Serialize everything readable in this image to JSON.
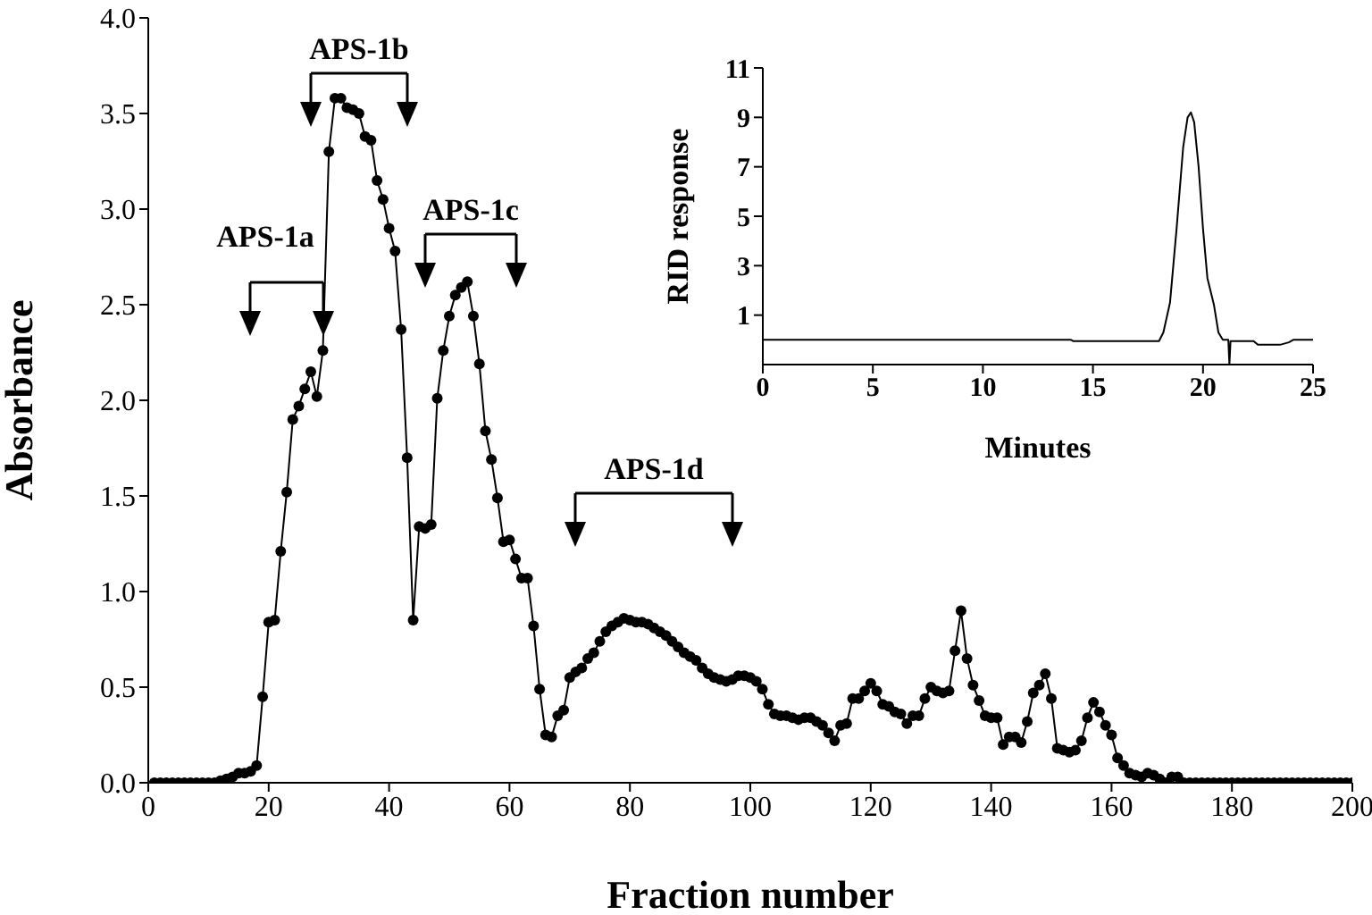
{
  "chart_data": [
    {
      "type": "line",
      "xlabel": "Fraction number",
      "ylabel": "Absorbance",
      "color": "#000000",
      "marker": "circle",
      "line_style": "solid",
      "x": [
        1,
        2,
        3,
        4,
        5,
        6,
        7,
        8,
        9,
        10,
        11,
        12,
        13,
        14,
        15,
        16,
        17,
        18,
        19,
        20,
        21,
        22,
        23,
        24,
        25,
        26,
        27,
        28,
        29,
        30,
        31,
        32,
        33,
        34,
        35,
        36,
        37,
        38,
        39,
        40,
        41,
        42,
        43,
        44,
        45,
        46,
        47,
        48,
        49,
        50,
        51,
        52,
        53,
        54,
        55,
        56,
        57,
        58,
        59,
        60,
        61,
        62,
        63,
        64,
        65,
        66,
        67,
        68,
        69,
        70,
        71,
        72,
        73,
        74,
        75,
        76,
        77,
        78,
        79,
        80,
        81,
        82,
        83,
        84,
        85,
        86,
        87,
        88,
        89,
        90,
        91,
        92,
        93,
        94,
        95,
        96,
        97,
        98,
        99,
        100,
        101,
        102,
        103,
        104,
        105,
        106,
        107,
        108,
        109,
        110,
        111,
        112,
        113,
        114,
        115,
        116,
        117,
        118,
        119,
        120,
        121,
        122,
        123,
        124,
        125,
        126,
        127,
        128,
        129,
        130,
        131,
        132,
        133,
        134,
        135,
        136,
        137,
        138,
        139,
        140,
        141,
        142,
        143,
        144,
        145,
        146,
        147,
        148,
        149,
        150,
        151,
        152,
        153,
        154,
        155,
        156,
        157,
        158,
        159,
        160,
        161,
        162,
        163,
        164,
        165,
        166,
        167,
        168,
        169,
        170,
        171,
        172,
        173,
        174,
        175,
        176,
        177,
        178,
        179,
        180,
        181,
        182,
        183,
        184,
        185,
        186,
        187,
        188,
        189,
        190,
        191,
        192,
        193,
        194,
        195,
        196,
        197,
        198,
        199,
        200
      ],
      "values": [
        0,
        0,
        0,
        0,
        0,
        0,
        0,
        0,
        0,
        0,
        0,
        0.01,
        0.02,
        0.03,
        0.05,
        0.05,
        0.06,
        0.09,
        0.45,
        0.84,
        0.85,
        1.21,
        1.52,
        1.9,
        1.97,
        2.06,
        2.15,
        2.02,
        2.26,
        3.3,
        3.58,
        3.58,
        3.53,
        3.52,
        3.5,
        3.38,
        3.36,
        3.15,
        3.05,
        2.9,
        2.78,
        2.37,
        1.7,
        0.85,
        1.34,
        1.33,
        1.35,
        2.01,
        2.26,
        2.44,
        2.55,
        2.59,
        2.62,
        2.44,
        2.19,
        1.84,
        1.69,
        1.49,
        1.26,
        1.27,
        1.17,
        1.07,
        1.07,
        0.82,
        0.49,
        0.25,
        0.24,
        0.35,
        0.38,
        0.55,
        0.58,
        0.6,
        0.65,
        0.68,
        0.74,
        0.79,
        0.82,
        0.84,
        0.86,
        0.85,
        0.84,
        0.84,
        0.83,
        0.81,
        0.79,
        0.77,
        0.74,
        0.71,
        0.68,
        0.66,
        0.64,
        0.6,
        0.57,
        0.55,
        0.54,
        0.53,
        0.54,
        0.56,
        0.56,
        0.55,
        0.53,
        0.49,
        0.41,
        0.36,
        0.35,
        0.35,
        0.34,
        0.33,
        0.34,
        0.34,
        0.32,
        0.3,
        0.26,
        0.22,
        0.3,
        0.31,
        0.44,
        0.44,
        0.48,
        0.52,
        0.48,
        0.41,
        0.4,
        0.37,
        0.36,
        0.31,
        0.35,
        0.35,
        0.44,
        0.5,
        0.48,
        0.47,
        0.48,
        0.69,
        0.9,
        0.65,
        0.51,
        0.43,
        0.35,
        0.34,
        0.34,
        0.2,
        0.24,
        0.24,
        0.21,
        0.32,
        0.47,
        0.51,
        0.57,
        0.44,
        0.18,
        0.17,
        0.16,
        0.17,
        0.22,
        0.34,
        0.42,
        0.37,
        0.3,
        0.25,
        0.13,
        0.09,
        0.05,
        0.04,
        0.03,
        0.05,
        0.04,
        0.02,
        0,
        0.03,
        0.03,
        0,
        0,
        0,
        0,
        0,
        0,
        0,
        0,
        0,
        0,
        0,
        0,
        0,
        0,
        0,
        0,
        0,
        0,
        0,
        0,
        0,
        0,
        0,
        0,
        0,
        0,
        0,
        0,
        0
      ],
      "xlim": [
        0,
        200
      ],
      "xticks": [
        0,
        20,
        40,
        60,
        80,
        100,
        120,
        140,
        160,
        180,
        200
      ],
      "ylim": [
        0,
        4
      ],
      "yticks": [
        {
          "value": 0,
          "label": "0.0"
        },
        {
          "value": 0.5,
          "label": "0.5"
        },
        {
          "value": 1,
          "label": "1.0"
        },
        {
          "value": 1.5,
          "label": "1.5"
        },
        {
          "value": 2,
          "label": "2.0"
        },
        {
          "value": 2.5,
          "label": "2.5"
        },
        {
          "value": 3,
          "label": "3.0"
        },
        {
          "value": 3.5,
          "label": "3.5"
        },
        {
          "value": 4,
          "label": "4.0"
        }
      ],
      "annotations": [
        "APS-1a",
        "APS-1b",
        "APS-1c",
        "APS-1d"
      ]
    },
    {
      "type": "line",
      "xlabel": "Minutes",
      "ylabel": "RID response",
      "color": "#000000",
      "marker": "none",
      "line_style": "solid",
      "x": [
        0,
        14,
        14.1,
        18,
        18.2,
        18.5,
        18.8,
        19.1,
        19.3,
        19.45,
        19.6,
        19.8,
        20,
        20.2,
        20.5,
        20.7,
        20.9,
        21.15,
        21.2,
        21.25,
        22.3,
        22.5,
        23.5,
        23.9,
        24.1,
        25
      ],
      "values": [
        0,
        0,
        -0.05,
        -0.05,
        0.3,
        1.5,
        4.5,
        7.8,
        9,
        9.2,
        8.8,
        7,
        4.5,
        2.5,
        1.4,
        0.3,
        0,
        0,
        -1,
        -0.05,
        -0.05,
        -0.2,
        -0.2,
        -0.1,
        0,
        0
      ],
      "xlim": [
        0,
        25
      ],
      "xticks": [
        0,
        5,
        10,
        15,
        20,
        25
      ],
      "ylim": [
        -1,
        11
      ],
      "yticks": [
        1,
        3,
        5,
        7,
        9,
        11
      ]
    }
  ]
}
